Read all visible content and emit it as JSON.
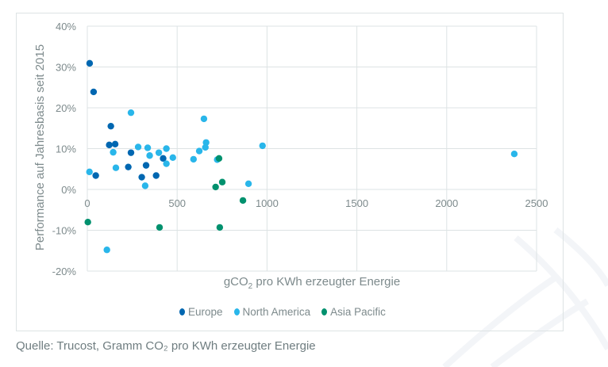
{
  "chart_data": {
    "type": "scatter",
    "title": "",
    "xlabel": "gCO₂ pro KWh erzeugter Energie",
    "xlabel_parts": {
      "pre": "gCO",
      "sub": "2",
      "post": " pro KWh erzeugter Energie"
    },
    "ylabel": "Performance auf Jahresbasis seit 2015",
    "xlim": [
      0,
      2500
    ],
    "ylim": [
      -20,
      40
    ],
    "x_ticks": [
      0,
      500,
      1000,
      1500,
      2000,
      2500
    ],
    "x_tick_labels": [
      "0",
      "500",
      "1000",
      "1500",
      "2000",
      "2500"
    ],
    "y_ticks": [
      -20,
      -10,
      0,
      10,
      20,
      30,
      40
    ],
    "y_tick_labels": [
      "-20%",
      "-10%",
      "0%",
      "10%",
      "20%",
      "30%",
      "40%"
    ],
    "grid": true,
    "legend_position": "bottom",
    "series": [
      {
        "name": "Europe",
        "color": "#0067b1",
        "points": [
          [
            13,
            30.9
          ],
          [
            35,
            23.9
          ],
          [
            131,
            15.5
          ],
          [
            122,
            10.9
          ],
          [
            155,
            11.1
          ],
          [
            243,
            9.0
          ],
          [
            422,
            7.6
          ],
          [
            228,
            5.5
          ],
          [
            327,
            5.9
          ],
          [
            47,
            3.4
          ],
          [
            303,
            3.0
          ],
          [
            383,
            3.4
          ]
        ]
      },
      {
        "name": "North America",
        "color": "#29b6ea",
        "points": [
          [
            243,
            18.8
          ],
          [
            144,
            9.1
          ],
          [
            283,
            10.4
          ],
          [
            336,
            10.2
          ],
          [
            347,
            8.3
          ],
          [
            398,
            9.0
          ],
          [
            440,
            10.0
          ],
          [
            476,
            7.8
          ],
          [
            440,
            6.3
          ],
          [
            159,
            5.3
          ],
          [
            12,
            4.3
          ],
          [
            322,
            0.9
          ],
          [
            649,
            17.3
          ],
          [
            661,
            11.5
          ],
          [
            657,
            10.3
          ],
          [
            623,
            9.4
          ],
          [
            591,
            7.4
          ],
          [
            723,
            7.3
          ],
          [
            975,
            10.7
          ],
          [
            897,
            1.4
          ],
          [
            109,
            -14.8
          ],
          [
            2376,
            8.7
          ]
        ]
      },
      {
        "name": "Asia Pacific",
        "color": "#00916e",
        "points": [
          [
            733,
            7.6
          ],
          [
            751,
            1.8
          ],
          [
            714,
            0.6
          ],
          [
            866,
            -2.7
          ],
          [
            3,
            -8.0
          ],
          [
            402,
            -9.3
          ],
          [
            737,
            -9.3
          ]
        ]
      }
    ]
  },
  "source_note": "Quelle: Trucost, Gramm CO₂ pro KWh erzeugter Energie",
  "colors": {
    "grid": "#dde3e4",
    "text": "#7d8a8c"
  }
}
